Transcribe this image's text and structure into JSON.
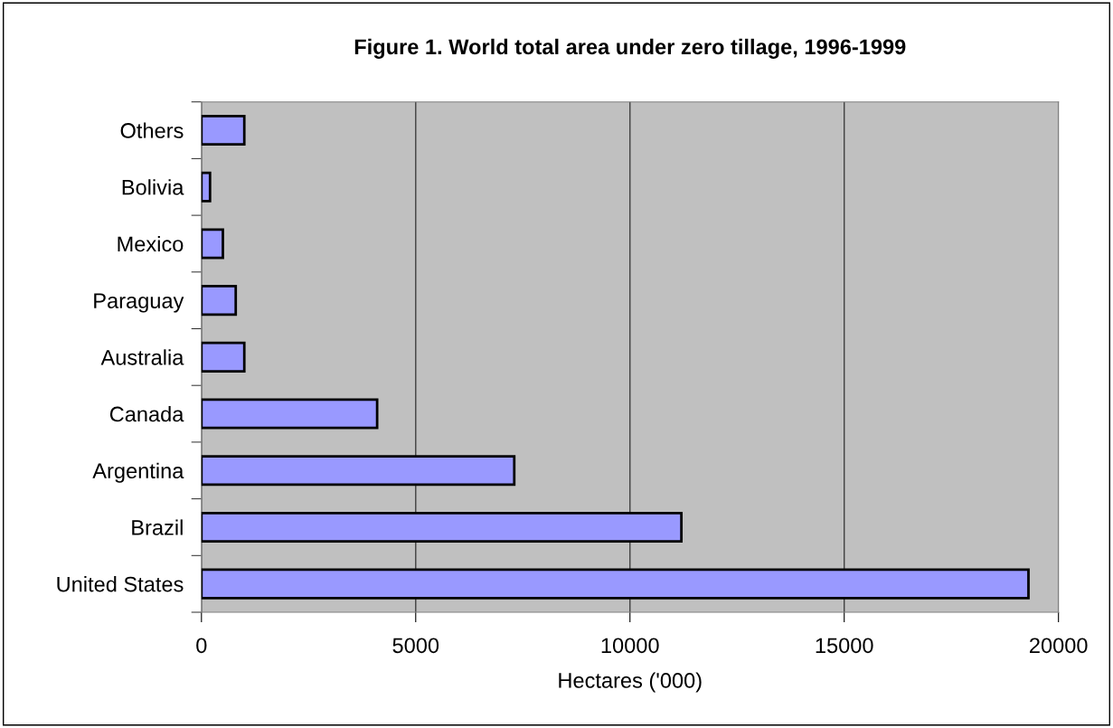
{
  "chart_data": {
    "type": "bar",
    "orientation": "horizontal",
    "title": "Figure 1. World total area under zero tillage, 1996-1999",
    "xlabel": "Hectares ('000)",
    "categories": [
      "Others",
      "Bolivia",
      "Mexico",
      "Paraguay",
      "Australia",
      "Canada",
      "Argentina",
      "Brazil",
      "United States"
    ],
    "values": [
      1000,
      200,
      500,
      800,
      1000,
      4100,
      7300,
      11200,
      19300
    ],
    "color": "#9999ff",
    "xlim": [
      0,
      20000
    ],
    "xticks": [
      0,
      5000,
      10000,
      15000,
      20000
    ],
    "grid": "x",
    "legend": false
  }
}
